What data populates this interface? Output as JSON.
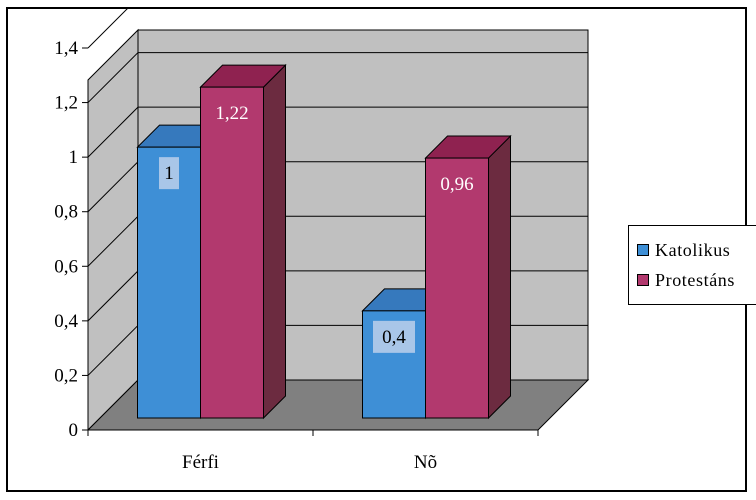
{
  "chart_data": {
    "type": "bar",
    "categories": [
      "Férfi",
      "Nõ"
    ],
    "series": [
      {
        "name": "Katolikus",
        "values": [
          1,
          0.4
        ],
        "labels": [
          "1",
          "0,4"
        ],
        "color": "#3e8fd6",
        "top": "#3679bd",
        "side": "#2b5f91"
      },
      {
        "name": "Protestáns",
        "values": [
          1.22,
          0.96
        ],
        "labels": [
          "1,22",
          "0,96"
        ],
        "color": "#b2396e",
        "top": "#8f2250",
        "side": "#6c2b40"
      }
    ],
    "ylim": [
      0,
      1.4
    ],
    "yticks": [
      "0",
      "0,2",
      "0,4",
      "0,6",
      "0,8",
      "1",
      "1,2",
      "1,4"
    ],
    "grid": true,
    "legend": "right",
    "wall_color": "#c0c0c0",
    "floor_color": "#808080",
    "label_box_color": "#a9c6e8"
  }
}
